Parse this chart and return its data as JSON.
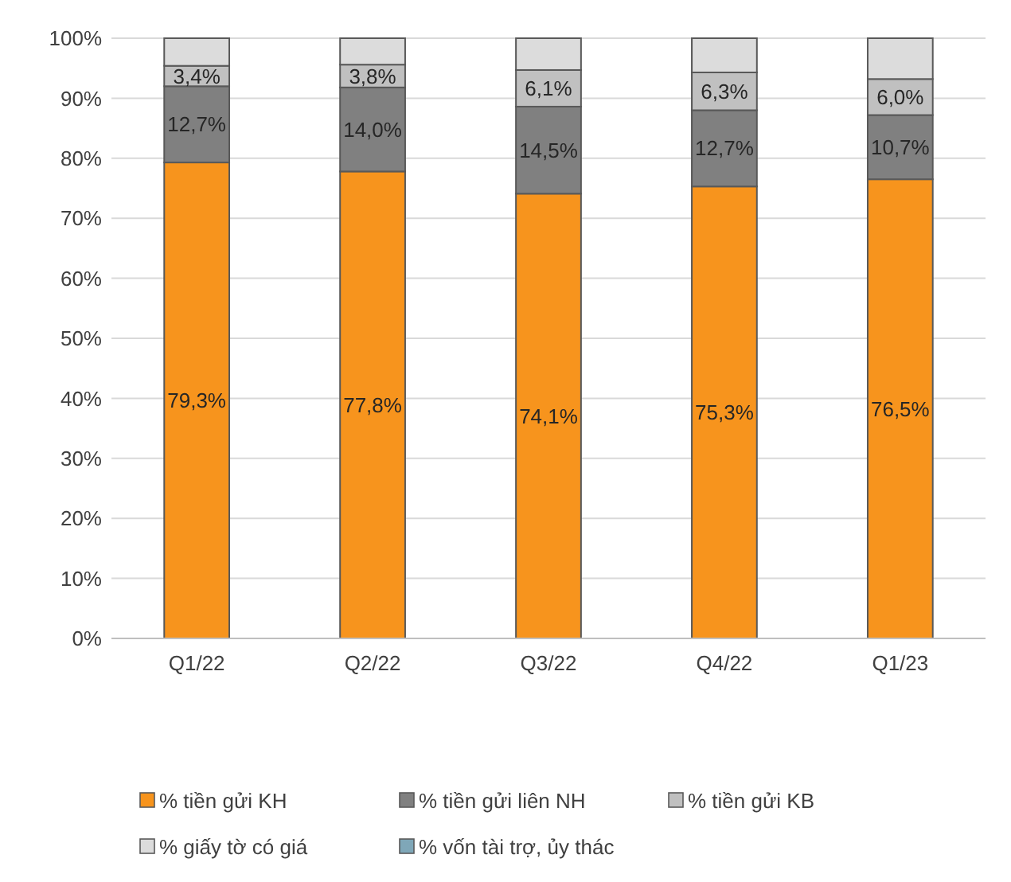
{
  "chart_data": {
    "type": "bar",
    "stacked": true,
    "categories": [
      "Q1/22",
      "Q2/22",
      "Q3/22",
      "Q4/22",
      "Q1/23"
    ],
    "series": [
      {
        "name": "% tiền gửi KH",
        "color": "#f7941d",
        "values": [
          79.3,
          77.8,
          74.1,
          75.3,
          76.5
        ],
        "value_labels": [
          "79,3%",
          "77,8%",
          "74,1%",
          "75,3%",
          "76,5%"
        ]
      },
      {
        "name": "% tiền gửi liên NH",
        "color": "#808080",
        "values": [
          12.7,
          14.0,
          14.5,
          12.7,
          10.7
        ],
        "value_labels": [
          "12,7%",
          "14,0%",
          "14,5%",
          "12,7%",
          "10,7%"
        ]
      },
      {
        "name": "% tiền gửi KB",
        "color": "#c0c0c0",
        "values": [
          3.4,
          3.8,
          6.1,
          6.3,
          6.0
        ],
        "value_labels": [
          "3,4%",
          "3,8%",
          "6,1%",
          "6,3%",
          "6,0%"
        ]
      },
      {
        "name": "% giấy tờ có giá",
        "color": "#dcdcdc",
        "values": [
          4.6,
          4.4,
          5.3,
          5.7,
          6.8
        ]
      },
      {
        "name": "% vốn tài trợ, ủy thác",
        "color": "#7fa7b8",
        "values": [
          0,
          0,
          0,
          0,
          0
        ]
      }
    ],
    "ylim": [
      0,
      100
    ],
    "yticks": [
      {
        "value": 0,
        "label": "0%"
      },
      {
        "value": 10,
        "label": "10%"
      },
      {
        "value": 20,
        "label": "20%"
      },
      {
        "value": 30,
        "label": "30%"
      },
      {
        "value": 40,
        "label": "40%"
      },
      {
        "value": 50,
        "label": "50%"
      },
      {
        "value": 60,
        "label": "60%"
      },
      {
        "value": 70,
        "label": "70%"
      },
      {
        "value": 80,
        "label": "80%"
      },
      {
        "value": 90,
        "label": "90%"
      },
      {
        "value": 100,
        "label": "100%"
      }
    ],
    "grid": "y",
    "legend": "bottom"
  }
}
